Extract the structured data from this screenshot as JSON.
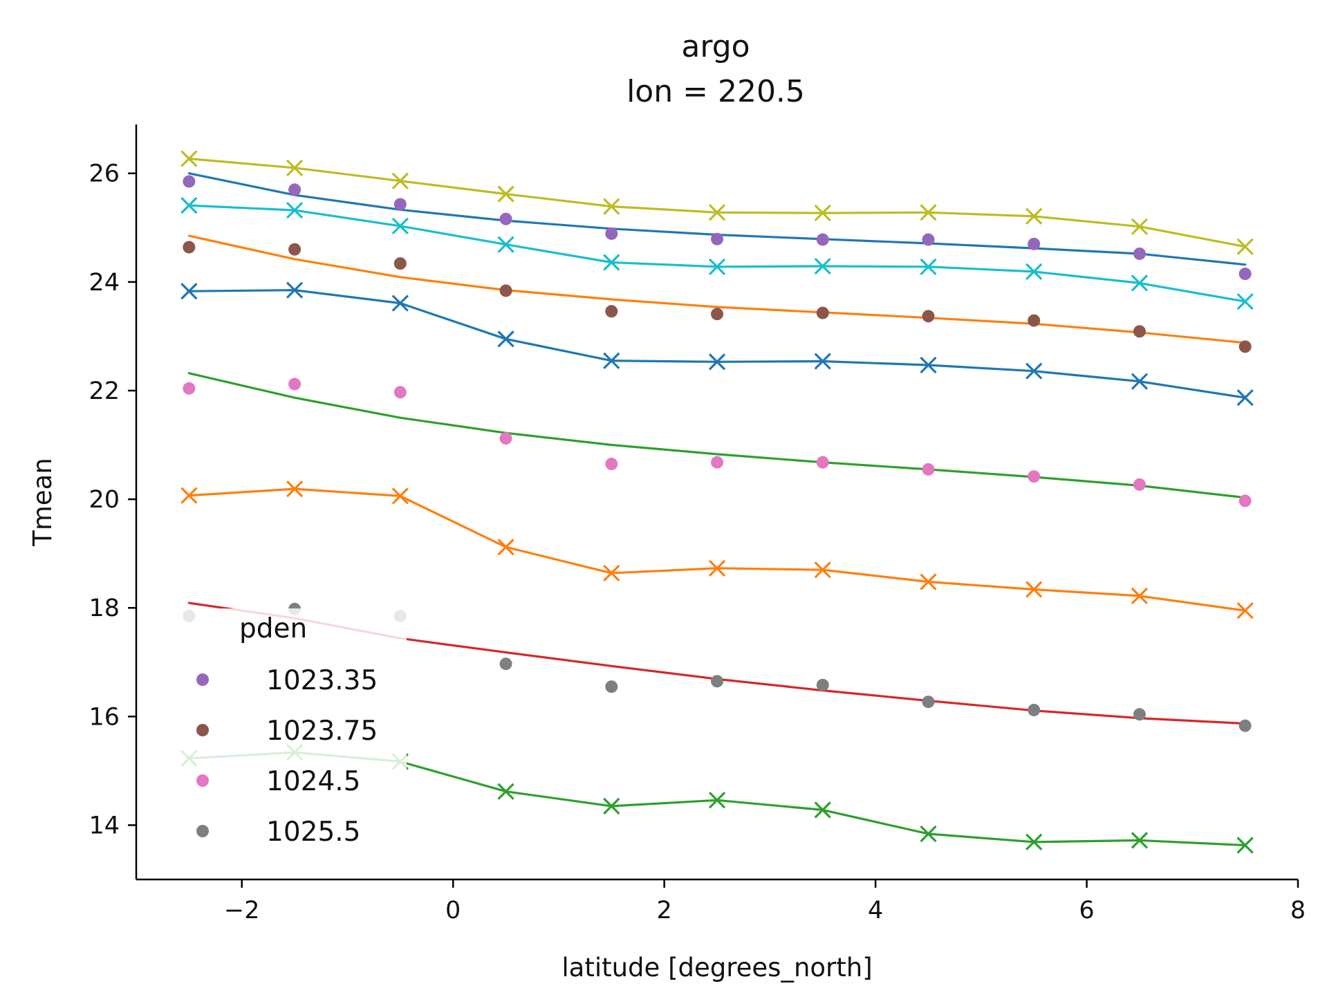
{
  "chart_data": {
    "type": "line",
    "title": [
      "argo",
      "lon = 220.5"
    ],
    "xlabel": "latitude [degrees_north]",
    "ylabel": "Tmean",
    "xlim": [
      -3,
      8
    ],
    "ylim": [
      13.0,
      26.9
    ],
    "xticks": [
      -2,
      0,
      2,
      4,
      6,
      8
    ],
    "yticks": [
      14,
      16,
      18,
      20,
      22,
      24,
      26
    ],
    "grid": false,
    "legend": {
      "title": "pden",
      "placement": "lower-left",
      "entries": [
        {
          "label": "1023.35",
          "color": "#9467bd"
        },
        {
          "label": "1023.75",
          "color": "#8c564b"
        },
        {
          "label": "1024.5",
          "color": "#e377c2"
        },
        {
          "label": "1025.5",
          "color": "#7f7f7f"
        }
      ]
    },
    "x": [
      -2.5,
      -1.5,
      -0.5,
      0.5,
      1.5,
      2.5,
      3.5,
      4.5,
      5.5,
      6.5,
      7.5
    ],
    "series": [
      {
        "kind": "x-line",
        "color": "#bcbd22",
        "values": [
          26.27,
          26.1,
          25.86,
          25.62,
          25.39,
          25.28,
          25.27,
          25.28,
          25.21,
          25.02,
          24.65
        ]
      },
      {
        "kind": "line",
        "color": "#1f77b4",
        "values": [
          26.0,
          25.6,
          25.33,
          25.13,
          24.98,
          24.87,
          24.79,
          24.71,
          24.62,
          24.52,
          24.32
        ]
      },
      {
        "kind": "dots",
        "color": "#9467bd",
        "values": [
          25.85,
          25.7,
          25.43,
          25.16,
          24.89,
          24.79,
          24.78,
          24.78,
          24.7,
          24.52,
          24.15
        ]
      },
      {
        "kind": "x-line",
        "color": "#17becf",
        "values": [
          25.41,
          25.32,
          25.03,
          24.69,
          24.36,
          24.28,
          24.29,
          24.28,
          24.19,
          23.98,
          23.64
        ]
      },
      {
        "kind": "line",
        "color": "#ff7f0e",
        "values": [
          24.85,
          24.42,
          24.09,
          23.85,
          23.68,
          23.54,
          23.44,
          23.34,
          23.23,
          23.07,
          22.88
        ]
      },
      {
        "kind": "dots",
        "color": "#8c564b",
        "values": [
          24.64,
          24.6,
          24.34,
          23.84,
          23.46,
          23.41,
          23.43,
          23.37,
          23.29,
          23.09,
          22.81
        ]
      },
      {
        "kind": "x-line",
        "color": "#1f77b4",
        "values": [
          23.83,
          23.85,
          23.61,
          22.95,
          22.55,
          22.53,
          22.54,
          22.47,
          22.36,
          22.17,
          21.87
        ]
      },
      {
        "kind": "line",
        "color": "#2ca02c",
        "values": [
          22.32,
          21.87,
          21.5,
          21.22,
          21.0,
          20.83,
          20.68,
          20.55,
          20.41,
          20.25,
          20.03
        ]
      },
      {
        "kind": "dots",
        "color": "#e377c2",
        "values": [
          22.04,
          22.12,
          21.97,
          21.12,
          20.65,
          20.68,
          20.68,
          20.55,
          20.42,
          20.27,
          19.97
        ]
      },
      {
        "kind": "x-line",
        "color": "#ff7f0e",
        "values": [
          20.07,
          20.19,
          20.06,
          19.12,
          18.64,
          18.73,
          18.7,
          18.48,
          18.34,
          18.22,
          17.95
        ]
      },
      {
        "kind": "line",
        "color": "#d62728",
        "values": [
          18.09,
          17.81,
          17.44,
          17.18,
          16.93,
          16.69,
          16.48,
          16.29,
          16.11,
          15.97,
          15.87
        ]
      },
      {
        "kind": "dots",
        "color": "#7f7f7f",
        "values": [
          17.85,
          17.98,
          17.85,
          16.97,
          16.55,
          16.65,
          16.58,
          16.27,
          16.12,
          16.04,
          15.83
        ]
      },
      {
        "kind": "x-line",
        "color": "#2ca02c",
        "values": [
          15.23,
          15.34,
          15.17,
          14.62,
          14.35,
          14.46,
          14.28,
          13.84,
          13.69,
          13.72,
          13.63
        ]
      }
    ]
  }
}
